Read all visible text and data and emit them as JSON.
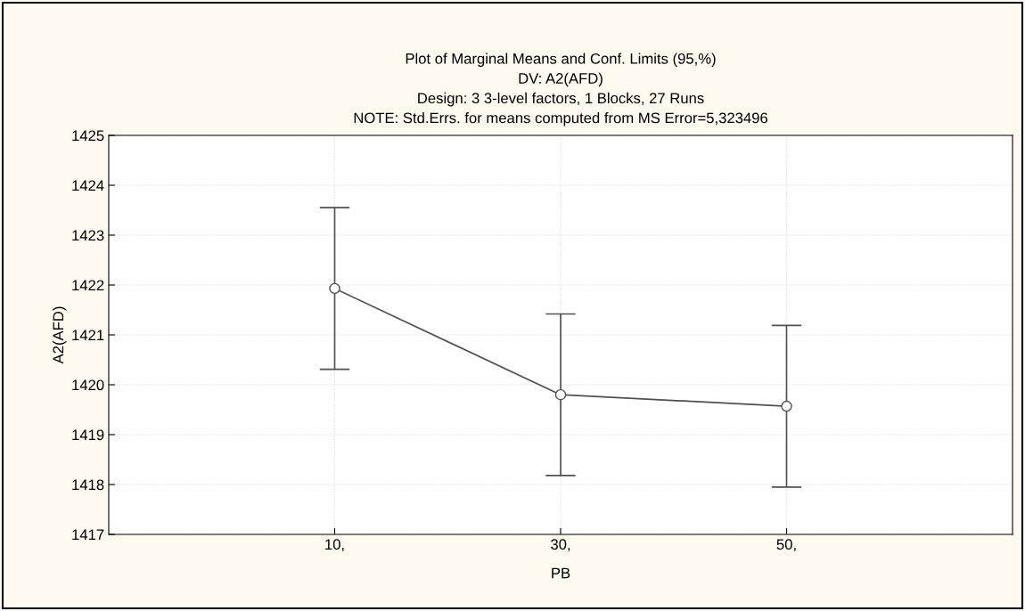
{
  "chart_data": {
    "type": "line",
    "title": "Plot of Marginal Means and Conf. Limits (95,%)\nDV: A2(AFD)\nDesign: 3 3-level factors, 1 Blocks, 27 Runs\nNOTE: Std.Errs. for means computed from MS Error=5,323496",
    "xlabel": "PB",
    "ylabel": "A2(AFD)",
    "x": [
      10,
      30,
      50
    ],
    "xlim": [
      -10,
      70
    ],
    "xticks": [
      {
        "value": 10,
        "label": "10,"
      },
      {
        "value": 30,
        "label": "30,"
      },
      {
        "value": 50,
        "label": "50,"
      }
    ],
    "series": [
      {
        "color": "#505050",
        "values": [
          1421.93,
          1419.8,
          1419.57
        ],
        "errors": [
          1.62,
          1.62,
          1.62
        ]
      }
    ],
    "ylim": [
      1417,
      1425
    ],
    "yticks": [
      1417,
      1418,
      1419,
      1420,
      1421,
      1422,
      1423,
      1424,
      1425
    ],
    "grid": true,
    "marker": "circle",
    "line_style": "solid",
    "legend": false
  }
}
